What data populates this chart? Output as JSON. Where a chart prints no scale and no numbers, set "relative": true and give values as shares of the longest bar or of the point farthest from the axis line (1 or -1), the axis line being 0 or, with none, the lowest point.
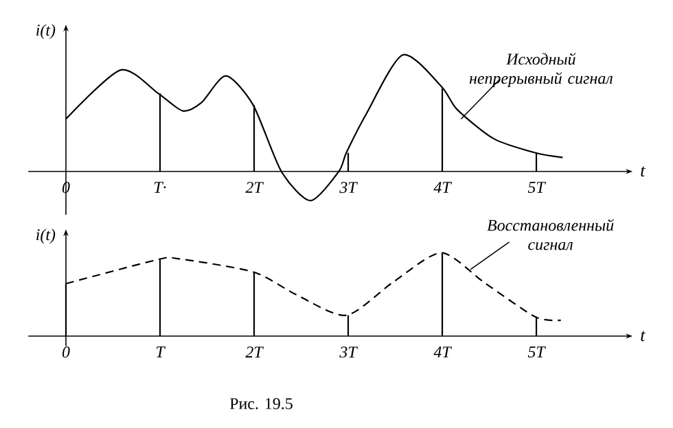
{
  "chart_data": [
    {
      "type": "line",
      "xlabel": "t",
      "ylabel": "i(t)",
      "relative": true,
      "xlim": [
        -0.4,
        5.95
      ],
      "xticks": [
        0,
        {
          "value": 1,
          "label": "T·"
        },
        {
          "value": 2,
          "label": "2T"
        },
        {
          "value": 3,
          "label": "3T"
        },
        {
          "value": 4,
          "label": "4T"
        },
        {
          "value": 5,
          "label": "5T"
        }
      ],
      "series": [
        {
          "color": "#000000",
          "line_style": "solid",
          "x": [
            0,
            0.58,
            0.98,
            1.24,
            1.44,
            1.7,
            1.99,
            2.29,
            2.6,
            2.9,
            2.98,
            3.19,
            3.58,
            3.99,
            4.16,
            4.55,
            4.99,
            5.28
          ],
          "values": [
            0.45,
            0.87,
            0.67,
            0.52,
            0.59,
            0.82,
            0.57,
            0,
            -0.25,
            0,
            0.16,
            0.49,
            1,
            0.73,
            0.53,
            0.28,
            0.16,
            0.12
          ]
        },
        {
          "type": "bar",
          "color": "#000000",
          "x": [
            1,
            2,
            3,
            4,
            5
          ],
          "values": [
            0.67,
            0.57,
            0.16,
            0.71,
            0.16
          ]
        }
      ],
      "annotations": [
        {
          "text": "Исходный непрерывный сигнал",
          "x": 4.2,
          "y": 0.45
        }
      ]
    },
    {
      "type": "line",
      "xlabel": "t",
      "ylabel": "i(t)",
      "relative": true,
      "xlim": [
        -0.4,
        5.95
      ],
      "xticks": [
        0,
        {
          "value": 1,
          "label": "T"
        },
        {
          "value": 2,
          "label": "2T"
        },
        {
          "value": 3,
          "label": "3T"
        },
        {
          "value": 4,
          "label": "4T"
        },
        {
          "value": 5,
          "label": "5T"
        }
      ],
      "series": [
        {
          "color": "#000000",
          "line_style": "dashed",
          "x": [
            0,
            0.98,
            1.19,
            1.99,
            2.46,
            2.98,
            3.48,
            3.99,
            4.45,
            4.99,
            5.26
          ],
          "values": [
            0.63,
            0.92,
            0.93,
            0.77,
            0.49,
            0.25,
            0.65,
            1,
            0.64,
            0.23,
            0.19
          ]
        },
        {
          "type": "bar",
          "color": "#000000",
          "x": [
            0,
            1,
            2,
            3,
            4,
            5
          ],
          "values": [
            0.63,
            0.92,
            0.77,
            0.25,
            1,
            0.22
          ]
        }
      ],
      "annotations": [
        {
          "text": "Восстановленный сигнал",
          "x": 4.3,
          "y": 0.8
        },
        "Рис. 19.5"
      ]
    }
  ]
}
